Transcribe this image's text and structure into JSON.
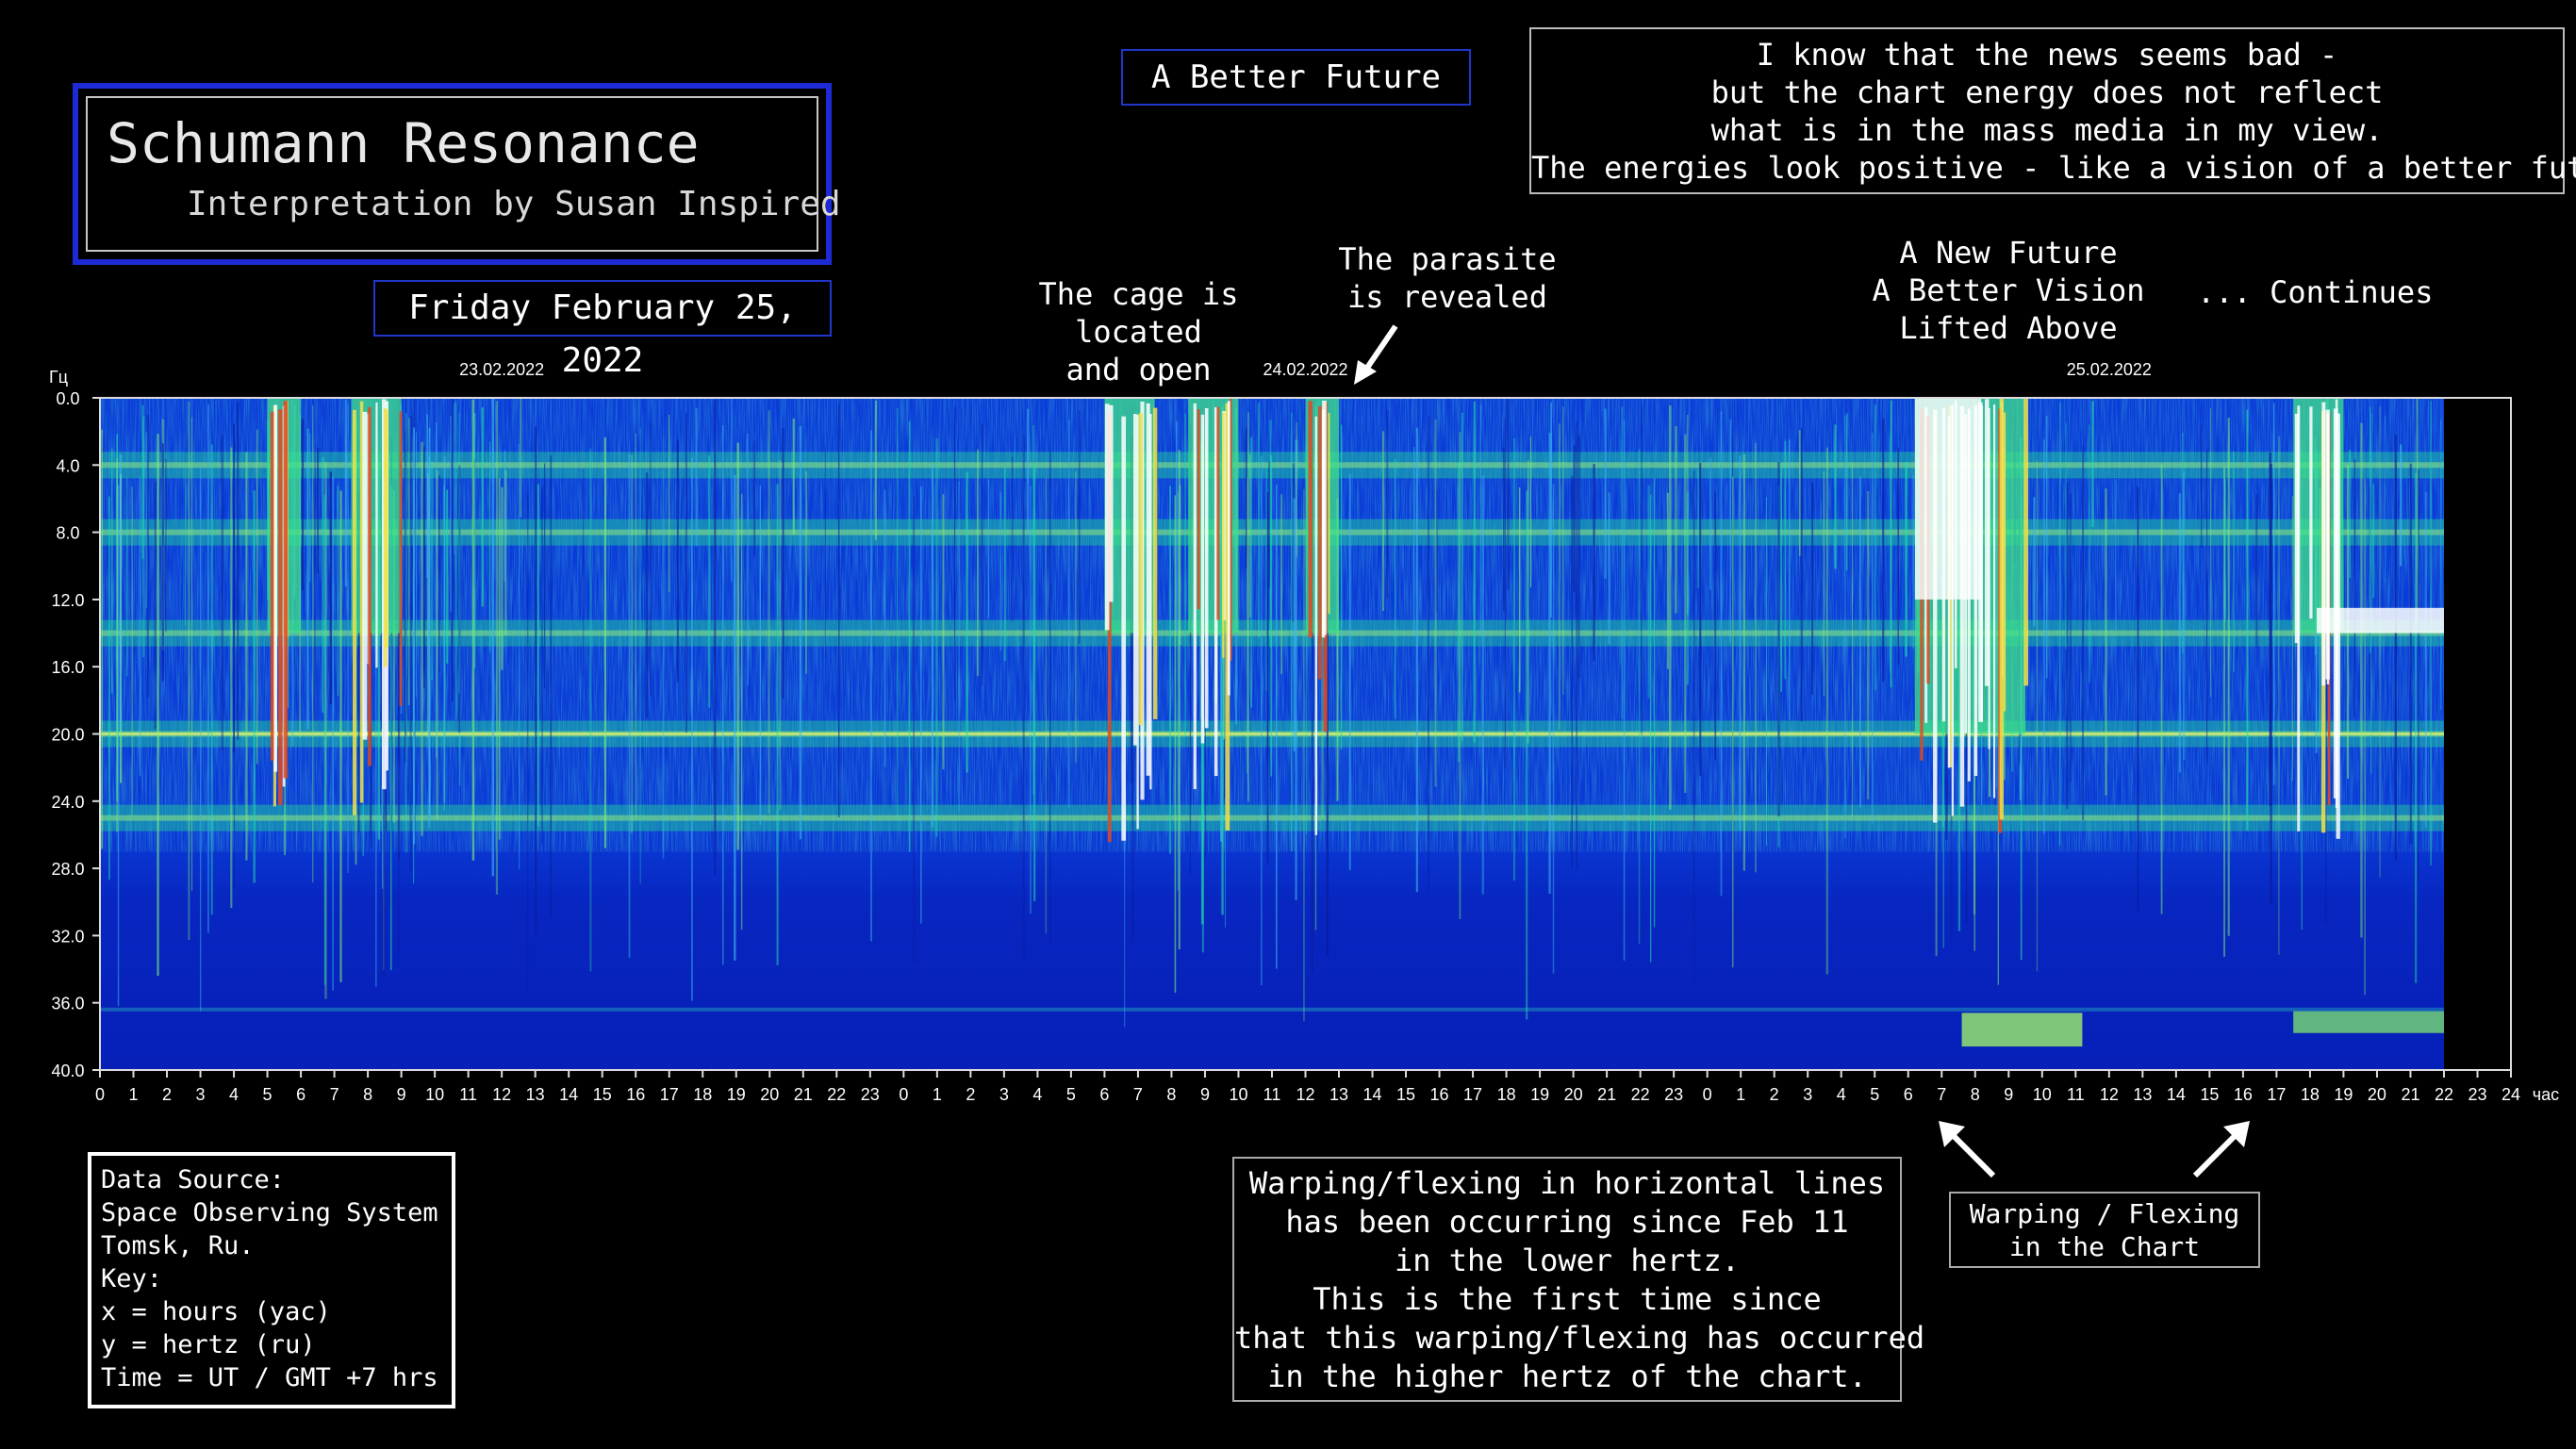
{
  "title": {
    "main": "Schumann Resonance",
    "subtitle": "Interpretation by Susan Inspired",
    "date": "Friday February 25, 2022"
  },
  "theme_box": "A Better Future",
  "news_box": [
    "I know that the news seems bad -",
    "but the chart energy  does not reflect",
    "what is in the mass media in my view.",
    "The energies look positive - like a vision of a better future."
  ],
  "annotations": {
    "cage": [
      "The cage is",
      "located",
      "and open"
    ],
    "parasite": [
      "The parasite",
      "is revealed"
    ],
    "new_future": [
      "A New Future",
      "A Better Vision",
      "Lifted Above"
    ],
    "continues": "... Continues"
  },
  "data_source": [
    "Data Source:",
    "Space Observing System",
    "Tomsk, Ru.",
    "Key:",
    "x = hours (yac)",
    "y = hertz (ru)",
    "Time = UT / GMT +7 hrs"
  ],
  "warp_box": [
    "Warping/flexing in horizontal lines",
    "has been occurring since Feb 11",
    "in the lower hertz.",
    "This is the first time since",
    "that this warping/flexing has occurred",
    "in the higher hertz of the chart."
  ],
  "flex_box": [
    "Warping / Flexing",
    "in the Chart"
  ],
  "colors": {
    "frame_blue": "#1c2bd6",
    "spectrogram_base": "#0a2fd0",
    "spectrogram_mid": "#19d8a0",
    "spectrogram_high": "#ffffff"
  },
  "chart_data": {
    "type": "heatmap",
    "xlabel": "час",
    "ylabel": "Гц",
    "xlim": [
      0,
      72
    ],
    "ylim": [
      0,
      40
    ],
    "y_ticks": [
      "0.0",
      "4.0",
      "8.0",
      "12.0",
      "16.0",
      "20.0",
      "24.0",
      "28.0",
      "32.0",
      "36.0",
      "40.0"
    ],
    "x_ticks": [
      "0",
      "1",
      "2",
      "3",
      "4",
      "5",
      "6",
      "7",
      "8",
      "9",
      "10",
      "11",
      "12",
      "13",
      "14",
      "15",
      "16",
      "17",
      "18",
      "19",
      "20",
      "21",
      "22",
      "23",
      "0",
      "1",
      "2",
      "3",
      "4",
      "5",
      "6",
      "7",
      "8",
      "9",
      "10",
      "11",
      "12",
      "13",
      "14",
      "15",
      "16",
      "17",
      "18",
      "19",
      "20",
      "21",
      "22",
      "23",
      "0",
      "1",
      "2",
      "3",
      "4",
      "5",
      "6",
      "7",
      "8",
      "9",
      "10",
      "11",
      "12",
      "13",
      "14",
      "15",
      "16",
      "17",
      "18",
      "19",
      "20",
      "21",
      "22",
      "23",
      "24"
    ],
    "date_labels": [
      {
        "label": "23.02.2022",
        "hour": 12
      },
      {
        "label": "24.02.2022",
        "hour": 36
      },
      {
        "label": "25.02.2022",
        "hour": 60
      }
    ],
    "data_end_hour": 70,
    "resonance_bands_hz": [
      4,
      8,
      14,
      20,
      25
    ],
    "bright_bursts_hours": [
      [
        5,
        6
      ],
      [
        7.5,
        9
      ],
      [
        30,
        31.5
      ],
      [
        32.5,
        34
      ],
      [
        36,
        37
      ],
      [
        54.2,
        57.5
      ],
      [
        65.5,
        67
      ]
    ]
  }
}
